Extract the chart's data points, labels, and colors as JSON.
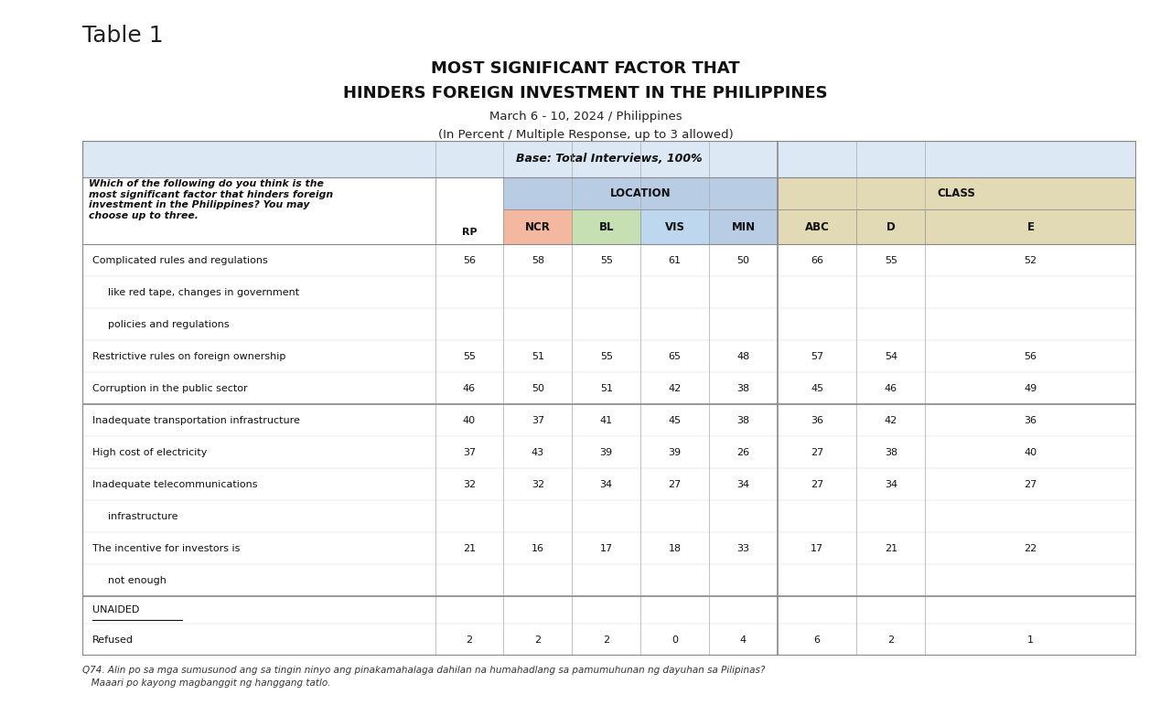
{
  "title_table": "Table 1",
  "title_main_line1": "MOST SIGNIFICANT FACTOR THAT",
  "title_main_line2": "HINDERS FOREIGN INVESTMENT IN THE PHILIPPINES",
  "title_sub1": "March 6 - 10, 2024 / Philippines",
  "title_sub2": "(In Percent / Multiple Response, up to 3 allowed)",
  "base_text": "Base: Total Interviews, 100%",
  "question_text": "Which of the following do you think is the\nmost significant factor that hinders foreign\ninvestment in the Philippines? You may\nchoose up to three.",
  "col_headers_location": "LOCATION",
  "col_headers_class": "CLASS",
  "columns": [
    "RP",
    "NCR",
    "BL",
    "VIS",
    "MIN",
    "ABC",
    "D",
    "E"
  ],
  "row_labels": [
    "Complicated rules and regulations",
    "   like red tape, changes in government",
    "   policies and regulations",
    "Restrictive rules on foreign ownership",
    "Corruption in the public sector",
    "Inadequate transportation infrastructure",
    "High cost of electricity",
    "Inadequate telecommunications",
    "   infrastructure",
    "The incentive for investors is",
    "   not enough",
    "UNAIDED",
    "Refused"
  ],
  "row_values": [
    [
      56,
      58,
      55,
      61,
      50,
      66,
      55,
      52
    ],
    null,
    null,
    [
      55,
      51,
      55,
      65,
      48,
      57,
      54,
      56
    ],
    [
      46,
      50,
      51,
      42,
      38,
      45,
      46,
      49
    ],
    [
      40,
      37,
      41,
      45,
      38,
      36,
      42,
      36
    ],
    [
      37,
      43,
      39,
      39,
      26,
      27,
      38,
      40
    ],
    [
      32,
      32,
      34,
      27,
      34,
      27,
      34,
      27
    ],
    null,
    [
      21,
      16,
      17,
      18,
      33,
      17,
      21,
      22
    ],
    null,
    null,
    [
      2,
      2,
      2,
      0,
      4,
      6,
      2,
      1
    ]
  ],
  "footnote_line1": "Q74. Alin po sa mga sumusunod ang sa tingin ninyo ang pinakamahalaga dahilan na humahadlang sa pamumuhunan ng dayuhan sa Pilipinas?",
  "footnote_line2": "   Maaari po kayong magbanggit ng hanggang tatlo.",
  "bg_color": "#ffffff",
  "header_bg_location": "#b8cce4",
  "header_bg_class": "#e2d9b5",
  "header_bg_ncr": "#f4b8a0",
  "header_bg_bl": "#c6e0b4",
  "header_bg_vis": "#bdd7ee",
  "header_bg_min": "#b8cce4",
  "base_row_bg": "#dce9f5"
}
